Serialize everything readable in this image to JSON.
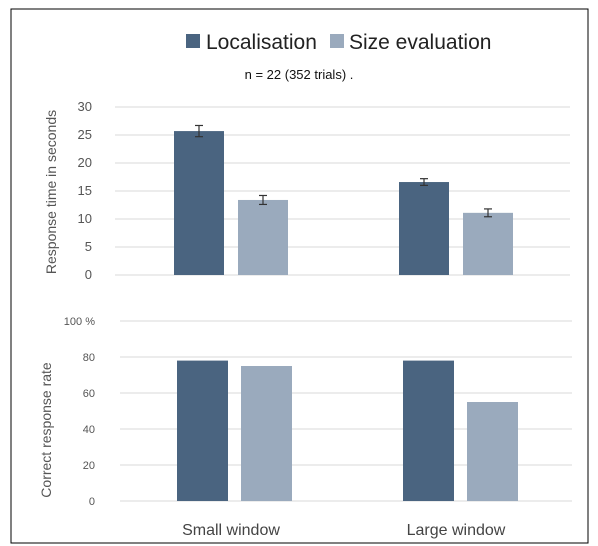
{
  "legend": {
    "items": [
      {
        "label": "Localisation",
        "color": "#4a6480"
      },
      {
        "label": "Size evaluation",
        "color": "#9aaabd"
      }
    ]
  },
  "subtitle": "n = 22 (352 trials) .",
  "chart_data": [
    {
      "type": "bar",
      "categories": [
        "Small window",
        "Large window"
      ],
      "series": [
        {
          "name": "Localisation",
          "values": [
            25.7,
            16.6
          ],
          "error": [
            1.0,
            0.6
          ],
          "color": "#4a6480"
        },
        {
          "name": "Size evaluation",
          "values": [
            13.4,
            11.1
          ],
          "error": [
            0.8,
            0.7
          ],
          "color": "#9aaabd"
        }
      ],
      "ylabel": "Response time in seconds",
      "ylim": [
        0,
        30
      ],
      "yticks": [
        "0",
        "5",
        "10",
        "15",
        "20",
        "25",
        "30"
      ],
      "grid": true,
      "legend_position": "top"
    },
    {
      "type": "bar",
      "categories": [
        "Small window",
        "Large window"
      ],
      "series": [
        {
          "name": "Localisation",
          "values": [
            78,
            78
          ],
          "color": "#4a6480"
        },
        {
          "name": "Size evaluation",
          "values": [
            75,
            55
          ],
          "color": "#9aaabd"
        }
      ],
      "ylabel": "Correct response rate",
      "ylim": [
        0,
        100
      ],
      "yticks": [
        "0",
        "20",
        "40",
        "60",
        "80",
        "100 %"
      ],
      "grid": true
    }
  ]
}
